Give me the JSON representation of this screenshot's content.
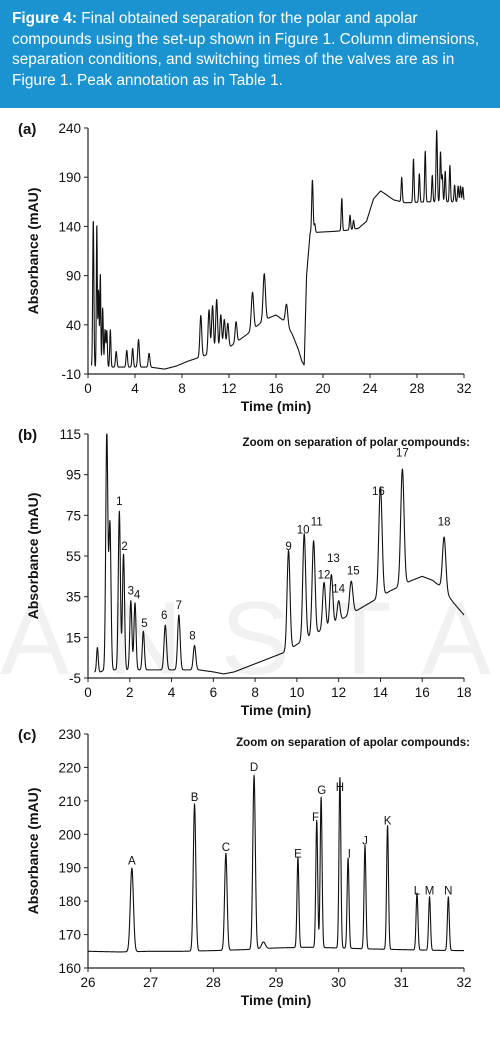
{
  "caption": {
    "lead": "Figure 4:",
    "text": "Final obtained separation for the polar and apolar compounds using the set-up shown in Figure 1. Column dimensions, separation conditions, and switching times of the valves are as in Figure 1. Peak annotation as in Table 1."
  },
  "watermark": "ANSTAR",
  "chart_data": [
    {
      "panel_label": "(a)",
      "type": "line",
      "title": "",
      "xlabel": "Time (min)",
      "ylabel": "Absorbance (mAU)",
      "xlim": [
        0,
        32
      ],
      "ylim": [
        -10,
        240
      ],
      "xticks": [
        0,
        4,
        8,
        12,
        16,
        20,
        24,
        28,
        32
      ],
      "yticks": [
        -10,
        40,
        90,
        140,
        190,
        240
      ],
      "baseline": [
        [
          0.3,
          -3
        ],
        [
          0.7,
          -3
        ],
        [
          1.2,
          -3
        ],
        [
          3,
          -3
        ],
        [
          5.3,
          -3
        ],
        [
          6.5,
          -5
        ],
        [
          7.5,
          -2
        ],
        [
          8.5,
          3
        ],
        [
          10,
          9
        ],
        [
          12,
          17
        ],
        [
          13.5,
          30
        ],
        [
          15,
          45
        ],
        [
          16,
          50
        ],
        [
          16.8,
          43
        ],
        [
          17.4,
          30
        ],
        [
          17.9,
          15
        ],
        [
          18.2,
          3
        ],
        [
          18.4,
          -1
        ],
        [
          18.6,
          90
        ],
        [
          18.9,
          133
        ],
        [
          19.5,
          134
        ],
        [
          21,
          135
        ],
        [
          22,
          136
        ],
        [
          23,
          138
        ],
        [
          23.7,
          145
        ],
        [
          24.3,
          168
        ],
        [
          24.9,
          176
        ],
        [
          25.3,
          173
        ],
        [
          26,
          167
        ],
        [
          27,
          164
        ],
        [
          29,
          165
        ],
        [
          31,
          165
        ],
        [
          32,
          165
        ]
      ],
      "peaks": [
        [
          0.45,
          150,
          0.05
        ],
        [
          0.75,
          145,
          0.04
        ],
        [
          0.9,
          78,
          0.05
        ],
        [
          1.05,
          95,
          0.04
        ],
        [
          1.25,
          60,
          0.05
        ],
        [
          1.45,
          38,
          0.05
        ],
        [
          1.6,
          37,
          0.05
        ],
        [
          1.9,
          38,
          0.05
        ],
        [
          2.4,
          16,
          0.06
        ],
        [
          3.3,
          17,
          0.06
        ],
        [
          3.8,
          19,
          0.06
        ],
        [
          4.3,
          28,
          0.07
        ],
        [
          5.2,
          14,
          0.07
        ],
        [
          9.6,
          42,
          0.08
        ],
        [
          10.3,
          45,
          0.08
        ],
        [
          10.6,
          48,
          0.08
        ],
        [
          10.95,
          53,
          0.08
        ],
        [
          11.3,
          36,
          0.08
        ],
        [
          11.6,
          30,
          0.08
        ],
        [
          11.9,
          25,
          0.08
        ],
        [
          12.6,
          21,
          0.08
        ],
        [
          14,
          38,
          0.1
        ],
        [
          15,
          47,
          0.1
        ],
        [
          16.9,
          20,
          0.1
        ],
        [
          19.1,
          54,
          0.06
        ],
        [
          19.3,
          9,
          0.05
        ],
        [
          21.6,
          33,
          0.05
        ],
        [
          22.3,
          15,
          0.05
        ],
        [
          22.6,
          9,
          0.05
        ],
        [
          26.7,
          25,
          0.05
        ],
        [
          27.7,
          44,
          0.05
        ],
        [
          28.2,
          29,
          0.05
        ],
        [
          28.7,
          52,
          0.05
        ],
        [
          29.3,
          27,
          0.05
        ],
        [
          29.65,
          38,
          0.05
        ],
        [
          29.7,
          44,
          0.05
        ],
        [
          30,
          51,
          0.05
        ],
        [
          30.15,
          27,
          0.05
        ],
        [
          30.4,
          31,
          0.05
        ],
        [
          30.8,
          37,
          0.05
        ],
        [
          31.2,
          17,
          0.05
        ],
        [
          31.5,
          16,
          0.05
        ],
        [
          31.7,
          16,
          0.05
        ],
        [
          31.9,
          15,
          0.05
        ]
      ]
    },
    {
      "panel_label": "(b)",
      "type": "line",
      "title": "Zoom on separation of polar compounds:",
      "xlabel": "Time (min)",
      "ylabel": "Absorbance (mAU)",
      "xlim": [
        0,
        18
      ],
      "ylim": [
        -5,
        115
      ],
      "xticks": [
        0,
        2,
        4,
        6,
        8,
        10,
        12,
        14,
        16,
        18
      ],
      "yticks": [
        -5,
        15,
        35,
        55,
        75,
        95,
        115
      ],
      "baseline": [
        [
          0.3,
          -2
        ],
        [
          0.6,
          -2
        ],
        [
          0.8,
          -1
        ],
        [
          2,
          -1
        ],
        [
          4,
          -1
        ],
        [
          5.3,
          -1
        ],
        [
          6,
          -2
        ],
        [
          6.5,
          -3
        ],
        [
          7,
          -2
        ],
        [
          8,
          2
        ],
        [
          9,
          6
        ],
        [
          9.5,
          8
        ],
        [
          10.5,
          15
        ],
        [
          11.5,
          20
        ],
        [
          12.5,
          26
        ],
        [
          13.5,
          32
        ],
        [
          14.5,
          38
        ],
        [
          15.5,
          43
        ],
        [
          16,
          45
        ],
        [
          16.5,
          43
        ],
        [
          17,
          39
        ],
        [
          17.5,
          32
        ],
        [
          18,
          26
        ]
      ],
      "peaks": [
        [
          0.45,
          12,
          0.04
        ],
        [
          0.9,
          117,
          0.05
        ],
        [
          1.05,
          72,
          0.05
        ],
        [
          1.5,
          78,
          0.05
        ],
        [
          1.7,
          57,
          0.05
        ],
        [
          2.05,
          34,
          0.05
        ],
        [
          2.25,
          33,
          0.05
        ],
        [
          2.65,
          19,
          0.05
        ],
        [
          3.7,
          22,
          0.06
        ],
        [
          4.35,
          27,
          0.06
        ],
        [
          5.1,
          12,
          0.06
        ],
        [
          9.6,
          49,
          0.07
        ],
        [
          10.35,
          52,
          0.07
        ],
        [
          10.8,
          46,
          0.07
        ],
        [
          11.3,
          23,
          0.07
        ],
        [
          11.65,
          25,
          0.07
        ],
        [
          12,
          10,
          0.07
        ],
        [
          12.6,
          16,
          0.08
        ],
        [
          14,
          54,
          0.08
        ],
        [
          15.05,
          57,
          0.08
        ],
        [
          17.05,
          26,
          0.08
        ]
      ],
      "peak_labels": [
        {
          "label": "1",
          "x": 1.5,
          "y": 80
        },
        {
          "label": "2",
          "x": 1.75,
          "y": 58
        },
        {
          "label": "3",
          "x": 2.05,
          "y": 36
        },
        {
          "label": "4",
          "x": 2.35,
          "y": 34
        },
        {
          "label": "5",
          "x": 2.7,
          "y": 20
        },
        {
          "label": "6",
          "x": 3.65,
          "y": 24
        },
        {
          "label": "7",
          "x": 4.35,
          "y": 29
        },
        {
          "label": "8",
          "x": 5.0,
          "y": 14
        },
        {
          "label": "9",
          "x": 9.6,
          "y": 58
        },
        {
          "label": "10",
          "x": 10.3,
          "y": 66
        },
        {
          "label": "11",
          "x": 10.95,
          "y": 70
        },
        {
          "label": "12",
          "x": 11.3,
          "y": 44
        },
        {
          "label": "13",
          "x": 11.75,
          "y": 52
        },
        {
          "label": "14",
          "x": 12.0,
          "y": 37
        },
        {
          "label": "15",
          "x": 12.7,
          "y": 46
        },
        {
          "label": "16",
          "x": 13.9,
          "y": 85
        },
        {
          "label": "17",
          "x": 15.05,
          "y": 104
        },
        {
          "label": "18",
          "x": 17.05,
          "y": 70
        }
      ]
    },
    {
      "panel_label": "(c)",
      "type": "line",
      "title": "Zoom on separation of apolar compounds:",
      "xlabel": "Time (min)",
      "ylabel": "Absorbance (mAU)",
      "xlim": [
        26,
        32
      ],
      "ylim": [
        160,
        230
      ],
      "xticks": [
        26,
        27,
        28,
        29,
        30,
        31,
        32
      ],
      "yticks": [
        160,
        170,
        180,
        190,
        200,
        210,
        220,
        230
      ],
      "baseline": [
        [
          26,
          165
        ],
        [
          26.5,
          164.8
        ],
        [
          27,
          165
        ],
        [
          27.5,
          165
        ],
        [
          28,
          165.2
        ],
        [
          28.5,
          165.5
        ],
        [
          29,
          166
        ],
        [
          29.5,
          166.2
        ],
        [
          30,
          166
        ],
        [
          30.5,
          165.7
        ],
        [
          31,
          165.5
        ],
        [
          31.5,
          165.3
        ],
        [
          32,
          165.2
        ]
      ],
      "peaks": [
        [
          26.7,
          25,
          0.025
        ],
        [
          27.7,
          44,
          0.02
        ],
        [
          28.2,
          29,
          0.02
        ],
        [
          28.65,
          52,
          0.02
        ],
        [
          28.8,
          2,
          0.03
        ],
        [
          29.35,
          27,
          0.015
        ],
        [
          29.65,
          38,
          0.015
        ],
        [
          29.72,
          45,
          0.015
        ],
        [
          30.02,
          51,
          0.015
        ],
        [
          30.15,
          27,
          0.015
        ],
        [
          30.42,
          31,
          0.015
        ],
        [
          30.78,
          37,
          0.015
        ],
        [
          31.25,
          17,
          0.015
        ],
        [
          31.45,
          16,
          0.015
        ],
        [
          31.75,
          16,
          0.015
        ]
      ],
      "peak_labels": [
        {
          "label": "A",
          "x": 26.7,
          "y": 191
        },
        {
          "label": "B",
          "x": 27.7,
          "y": 210
        },
        {
          "label": "C",
          "x": 28.2,
          "y": 195
        },
        {
          "label": "D",
          "x": 28.65,
          "y": 219
        },
        {
          "label": "E",
          "x": 29.35,
          "y": 193
        },
        {
          "label": "F",
          "x": 29.63,
          "y": 204
        },
        {
          "label": "G",
          "x": 29.73,
          "y": 212
        },
        {
          "label": "H",
          "x": 30.02,
          "y": 213
        },
        {
          "label": "I",
          "x": 30.17,
          "y": 193
        },
        {
          "label": "J",
          "x": 30.42,
          "y": 197
        },
        {
          "label": "K",
          "x": 30.78,
          "y": 203
        },
        {
          "label": "L",
          "x": 31.25,
          "y": 182
        },
        {
          "label": "M",
          "x": 31.45,
          "y": 182
        },
        {
          "label": "N",
          "x": 31.75,
          "y": 182
        }
      ]
    }
  ]
}
